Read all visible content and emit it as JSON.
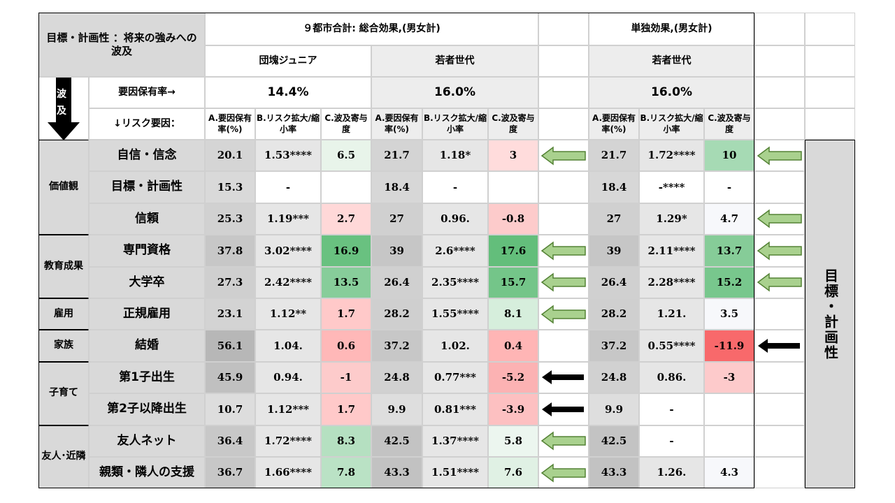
{
  "chart_data": {
    "type": "table",
    "title": "目標・計画性 ：将来の強みへの波及",
    "groups": {
      "total": "９都市合計: 総合効果,(男女計)",
      "single": "単独効果,(男女計)"
    },
    "cohorts": {
      "dankai": "団塊ジュニア",
      "young": "若者世代",
      "young_single": "若者世代"
    },
    "factor_rate_label": "要因保有率→",
    "factor_rates": {
      "dankai": "14.4%",
      "young": "16.0%",
      "young_single": "16.0%"
    },
    "risk_factor_label": "↓リスク要因：",
    "ripple_label_1": "波",
    "ripple_label_2": "及",
    "col_headers": {
      "a": "A.要因保有率(%)",
      "b": "B.リスク拡大/縮小率",
      "c": "C.波及寄与度"
    },
    "side_label": "目標・計画性",
    "categories": [
      {
        "name": "価値観",
        "rows": 3
      },
      {
        "name": "教育成果",
        "rows": 2
      },
      {
        "name": "雇用",
        "rows": 1
      },
      {
        "name": "家族",
        "rows": 1
      },
      {
        "name": "子育て",
        "rows": 2
      },
      {
        "name": "友人･近隣",
        "rows": 2
      }
    ],
    "rows": [
      {
        "label": "自信・信念",
        "d": [
          "20.1",
          "1.53****",
          "6.5"
        ],
        "y": [
          "21.7",
          "1.18*",
          "3"
        ],
        "s": [
          "21.7",
          "1.72****",
          "10"
        ],
        "arrow_y": "green",
        "arrow_s": "green"
      },
      {
        "label": "目標・計画性",
        "d": [
          "15.3",
          "-",
          ""
        ],
        "y": [
          "18.4",
          "-",
          ""
        ],
        "s": [
          "18.4",
          "-****",
          "-"
        ],
        "arrow_y": "",
        "arrow_s": ""
      },
      {
        "label": "信頼",
        "d": [
          "25.3",
          "1.19***",
          "2.7"
        ],
        "y": [
          "27",
          "0.96.",
          "-0.8"
        ],
        "s": [
          "27",
          "1.29*",
          "4.7"
        ],
        "arrow_y": "",
        "arrow_s": "green"
      },
      {
        "label": "専門資格",
        "d": [
          "37.8",
          "3.02****",
          "16.9"
        ],
        "y": [
          "39",
          "2.6****",
          "17.6"
        ],
        "s": [
          "39",
          "2.11****",
          "13.7"
        ],
        "arrow_y": "green",
        "arrow_s": "green"
      },
      {
        "label": "大学卒",
        "d": [
          "27.3",
          "2.42****",
          "13.5"
        ],
        "y": [
          "26.4",
          "2.35****",
          "15.7"
        ],
        "s": [
          "26.4",
          "2.28****",
          "15.2"
        ],
        "arrow_y": "green",
        "arrow_s": "green"
      },
      {
        "label": "正規雇用",
        "d": [
          "23.1",
          "1.12**",
          "1.7"
        ],
        "y": [
          "28.2",
          "1.55****",
          "8.1"
        ],
        "s": [
          "28.2",
          "1.21.",
          "3.5"
        ],
        "arrow_y": "green",
        "arrow_s": ""
      },
      {
        "label": "結婚",
        "d": [
          "56.1",
          "1.04.",
          "0.6"
        ],
        "y": [
          "37.2",
          "1.02.",
          "0.4"
        ],
        "s": [
          "37.2",
          "0.55****",
          "-11.9"
        ],
        "arrow_y": "",
        "arrow_s": "black"
      },
      {
        "label": "第1子出生",
        "d": [
          "45.9",
          "0.94.",
          "-1"
        ],
        "y": [
          "24.8",
          "0.77***",
          "-5.2"
        ],
        "s": [
          "24.8",
          "0.86.",
          "-3"
        ],
        "arrow_y": "black",
        "arrow_s": ""
      },
      {
        "label": "第2子以降出生",
        "d": [
          "10.7",
          "1.12***",
          "1.7"
        ],
        "y": [
          "9.9",
          "0.81***",
          "-3.9"
        ],
        "s": [
          "9.9",
          "-",
          ""
        ],
        "arrow_y": "black",
        "arrow_s": ""
      },
      {
        "label": "友人ネット",
        "d": [
          "36.4",
          "1.72****",
          "8.3"
        ],
        "y": [
          "42.5",
          "1.37****",
          "5.8"
        ],
        "s": [
          "42.5",
          "-",
          ""
        ],
        "arrow_y": "green",
        "arrow_s": ""
      },
      {
        "label": "親類・隣人の支援",
        "d": [
          "36.7",
          "1.66****",
          "7.8"
        ],
        "y": [
          "43.3",
          "1.51****",
          "7.6"
        ],
        "s": [
          "43.3",
          "1.26.",
          "4.3"
        ],
        "arrow_y": "green",
        "arrow_s": ""
      }
    ]
  }
}
